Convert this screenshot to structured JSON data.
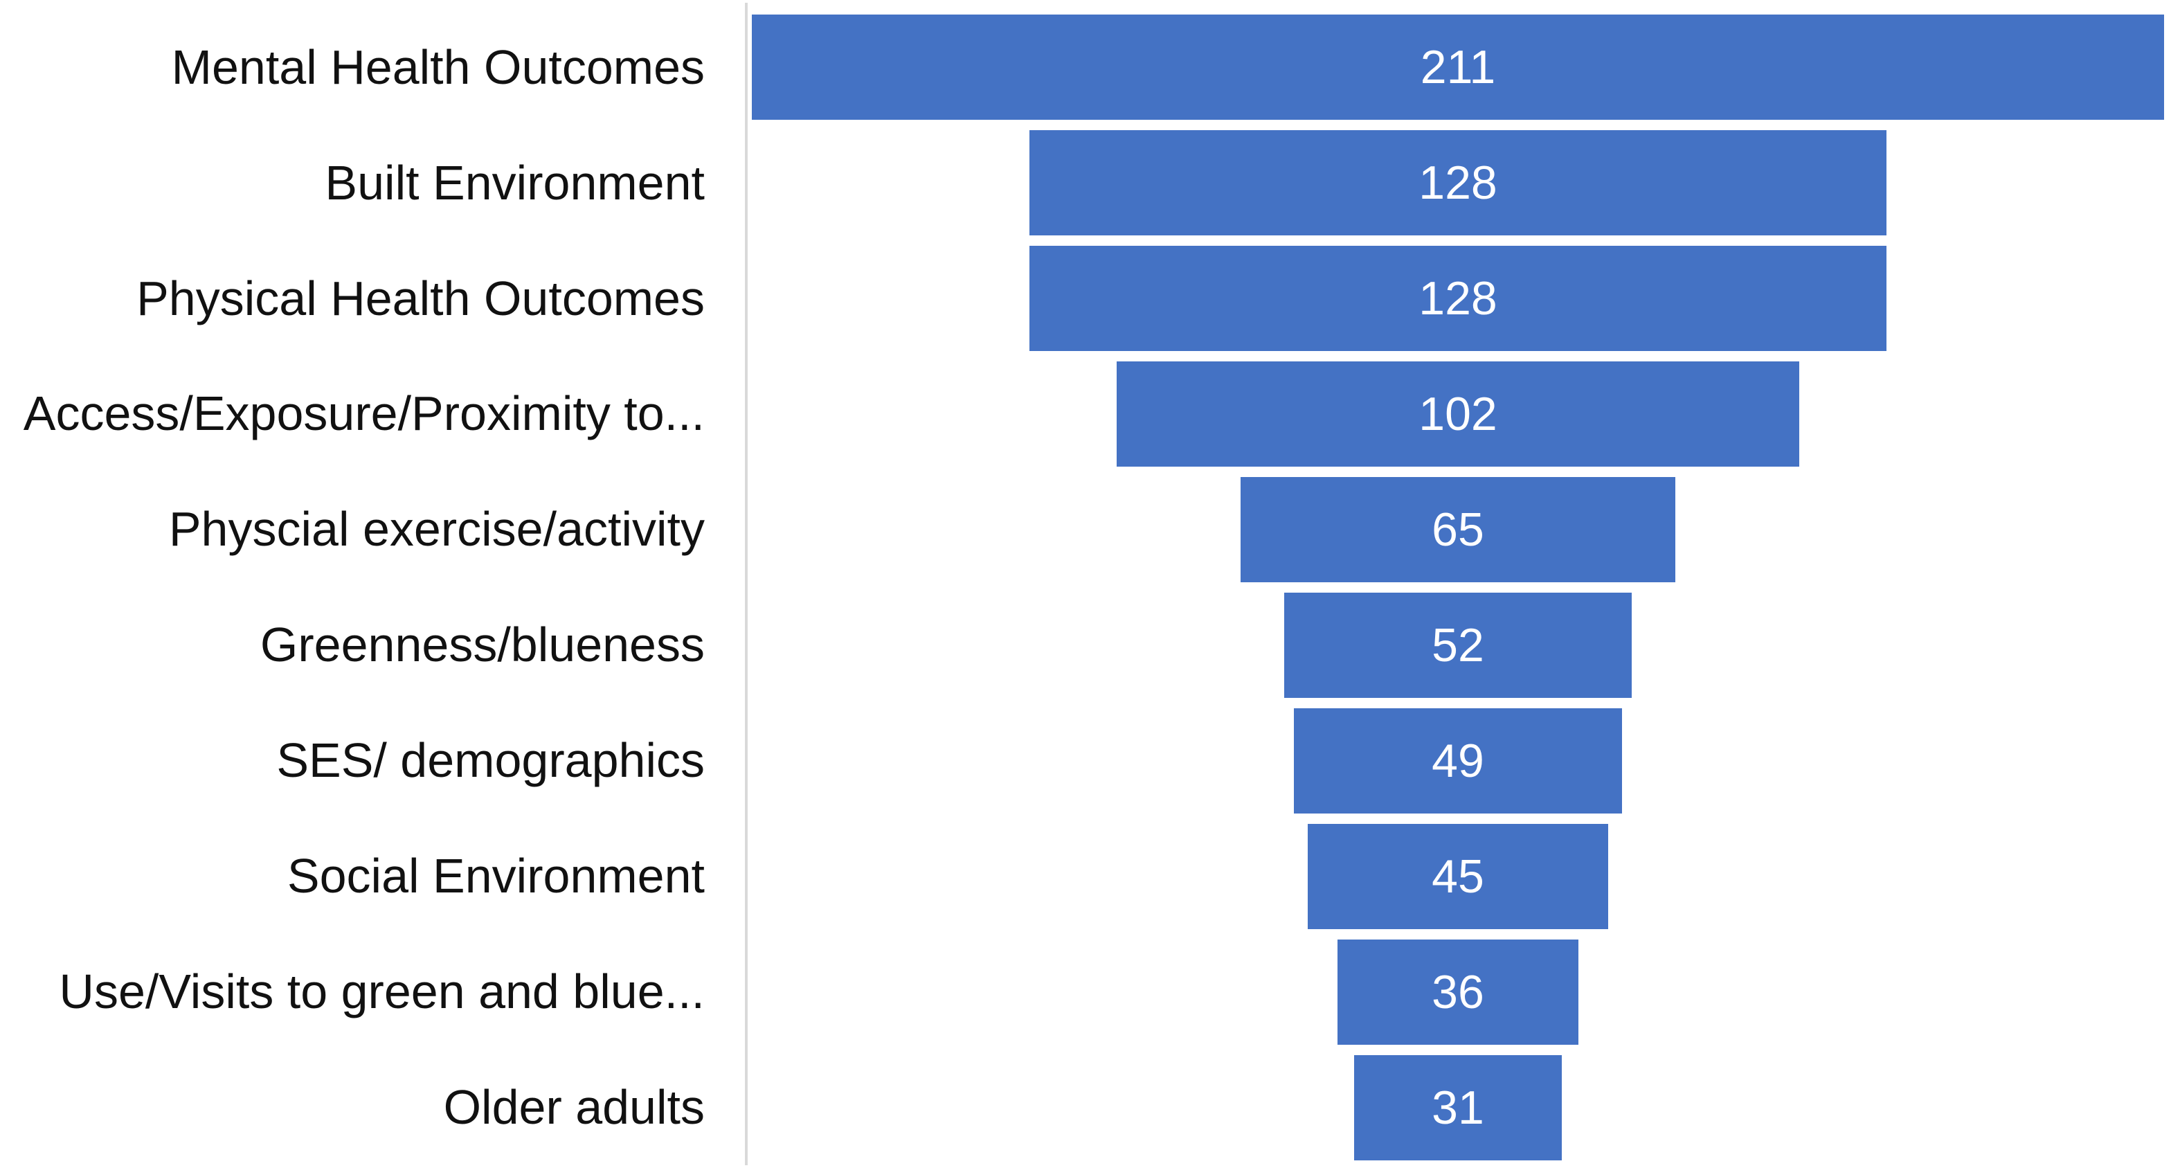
{
  "chart_data": {
    "type": "bar",
    "subtype": "funnel",
    "orientation": "horizontal_centered",
    "title": "",
    "xlabel": "",
    "ylabel": "",
    "categories": [
      "Mental Health Outcomes",
      "Built Environment",
      "Physical Health Outcomes",
      "Access/Exposure/Proximity to...",
      "Physcial exercise/activity",
      "Greenness/blueness",
      "SES/ demographics",
      "Social Environment",
      "Use/Visits to green and blue...",
      "Older adults"
    ],
    "values": [
      211,
      128,
      128,
      102,
      65,
      52,
      49,
      45,
      36,
      31
    ],
    "xlim": [
      0,
      211
    ],
    "grid": false,
    "legend": false,
    "value_label_position": "inside-center",
    "colors": {
      "bar_fill": "#4472C4",
      "value_label": "#FFFFFF",
      "category_label": "#111111",
      "axis_line": "#D9D9D9",
      "background": "#FFFFFF"
    }
  }
}
